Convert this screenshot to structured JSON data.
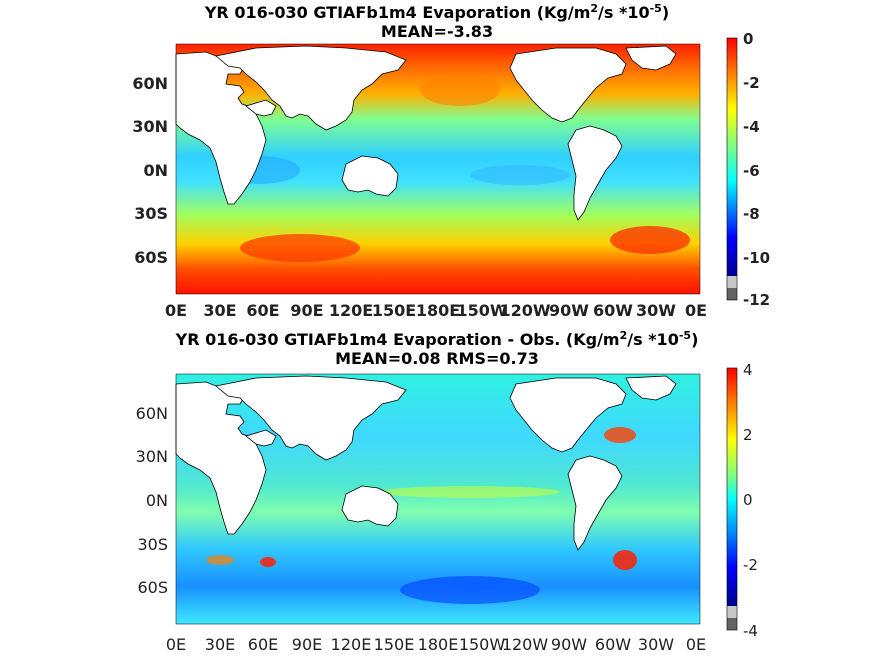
{
  "panels": [
    {
      "title_line1_pre": "YR 016-030 GTIAFb1m4  Evaporation (Kg/m",
      "title_sup1": "2",
      "title_line1_mid": "/s *10",
      "title_sup2": "-5",
      "title_line1_post": ")",
      "title_line2": "MEAN=-3.83",
      "x_ticks": [
        "0E",
        "30E",
        "60E",
        "90E",
        "120E",
        "150E",
        "180E",
        "150W",
        "120W",
        "90W",
        "60W",
        "30W",
        "0E"
      ],
      "y_ticks": [
        "60N",
        "30N",
        "0N",
        "30S",
        "60S"
      ],
      "colorbar_ticks": [
        "0",
        "-2",
        "-4",
        "-6",
        "-8",
        "-10",
        "-12"
      ],
      "colorbar_range": [
        -12,
        0
      ]
    },
    {
      "title_line1_pre": "YR 016-030 GTIAFb1m4 Evaporation - Obs. (Kg/m",
      "title_sup1": "2",
      "title_line1_mid": "/s *10",
      "title_sup2": "-5",
      "title_line1_post": ")",
      "title_line2": "MEAN=0.08   RMS=0.73",
      "x_ticks": [
        "0E",
        "30E",
        "60E",
        "90E",
        "120E",
        "150E",
        "180E",
        "150W",
        "120W",
        "90W",
        "60W",
        "30W",
        "0E"
      ],
      "y_ticks": [
        "60N",
        "30N",
        "0N",
        "30S",
        "60S"
      ],
      "colorbar_ticks": [
        "4",
        "2",
        "0",
        "-2",
        "-4"
      ],
      "colorbar_range": [
        -4,
        4
      ]
    }
  ],
  "colors": {
    "land": "#ffffff",
    "coast": "#000000",
    "jet": [
      "#00008f",
      "#0000ff",
      "#0080ff",
      "#00ffff",
      "#80ff80",
      "#ffff00",
      "#ff8000",
      "#ff0000",
      "#800000"
    ],
    "colorbar_gray_light": "#c8c8c8",
    "colorbar_gray_dark": "#646464"
  }
}
